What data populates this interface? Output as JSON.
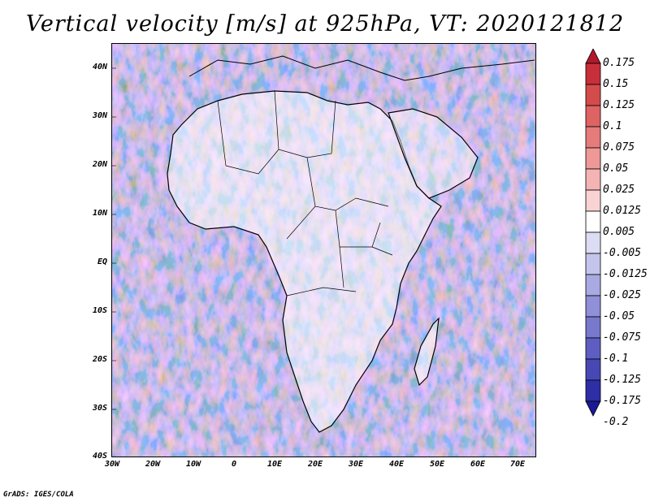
{
  "title": "Vertical velocity [m/s] at 925hPa, VT: 2020121812",
  "map": {
    "region": "Africa and Middle East",
    "lon_labels": [
      "30W",
      "20W",
      "10W",
      "0",
      "10E",
      "20E",
      "30E",
      "40E",
      "50E",
      "60E",
      "70E"
    ],
    "lat_labels": [
      "40N",
      "30N",
      "20N",
      "10N",
      "EQ",
      "10S",
      "20S",
      "30S",
      "40S"
    ]
  },
  "colorbar": {
    "levels": [
      "0.175",
      "0.15",
      "0.125",
      "0.1",
      "0.075",
      "0.05",
      "0.025",
      "0.0125",
      "0.005",
      "-0.005",
      "-0.0125",
      "-0.025",
      "-0.05",
      "-0.075",
      "-0.1",
      "-0.125",
      "-0.175",
      "-0.2"
    ],
    "colors": [
      "#b2182b",
      "#c7303a",
      "#d44b4b",
      "#de6363",
      "#e67b7b",
      "#ee9898",
      "#f4b4b4",
      "#f9d3d3",
      "#ffffff",
      "#dcdcf4",
      "#c4c4ec",
      "#aaaae2",
      "#9090d8",
      "#7878cc",
      "#5e5ec2",
      "#4848b4",
      "#2e2ea6",
      "#1a1a96"
    ]
  },
  "credit": "GrADS: IGES/COLA",
  "colors": {
    "positive": "#d9534f",
    "negative": "#6a6ad0",
    "coast": "#000000"
  }
}
